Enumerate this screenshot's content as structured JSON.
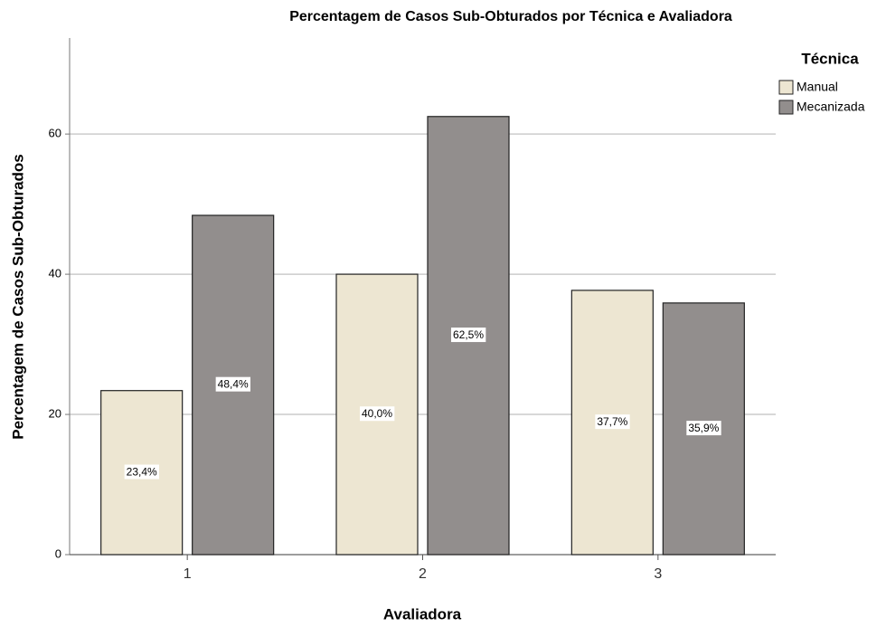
{
  "chart_data": {
    "type": "bar",
    "title": "Percentagem de Casos Sub-Obturados por Técnica e Avaliadora",
    "x_label": "Avaliadora",
    "y_label": "Percentagem de Casos Sub-Obturados",
    "legend_title": "Técnica",
    "categories": [
      "1",
      "2",
      "3"
    ],
    "series": [
      {
        "name": "Manual",
        "color": "#ede6d2",
        "values": [
          23.4,
          40.0,
          37.7
        ],
        "value_labels": [
          "23,4%",
          "40,0%",
          "37,7%"
        ]
      },
      {
        "name": "Mecanizada",
        "color": "#928e8d",
        "values": [
          48.4,
          62.5,
          35.9
        ],
        "value_labels": [
          "48,4%",
          "62,5%",
          "35,9%"
        ]
      }
    ],
    "ylim": [
      0,
      73.7
    ],
    "yticks": [
      0,
      20,
      40,
      60
    ],
    "grid": true,
    "legend": "right"
  }
}
